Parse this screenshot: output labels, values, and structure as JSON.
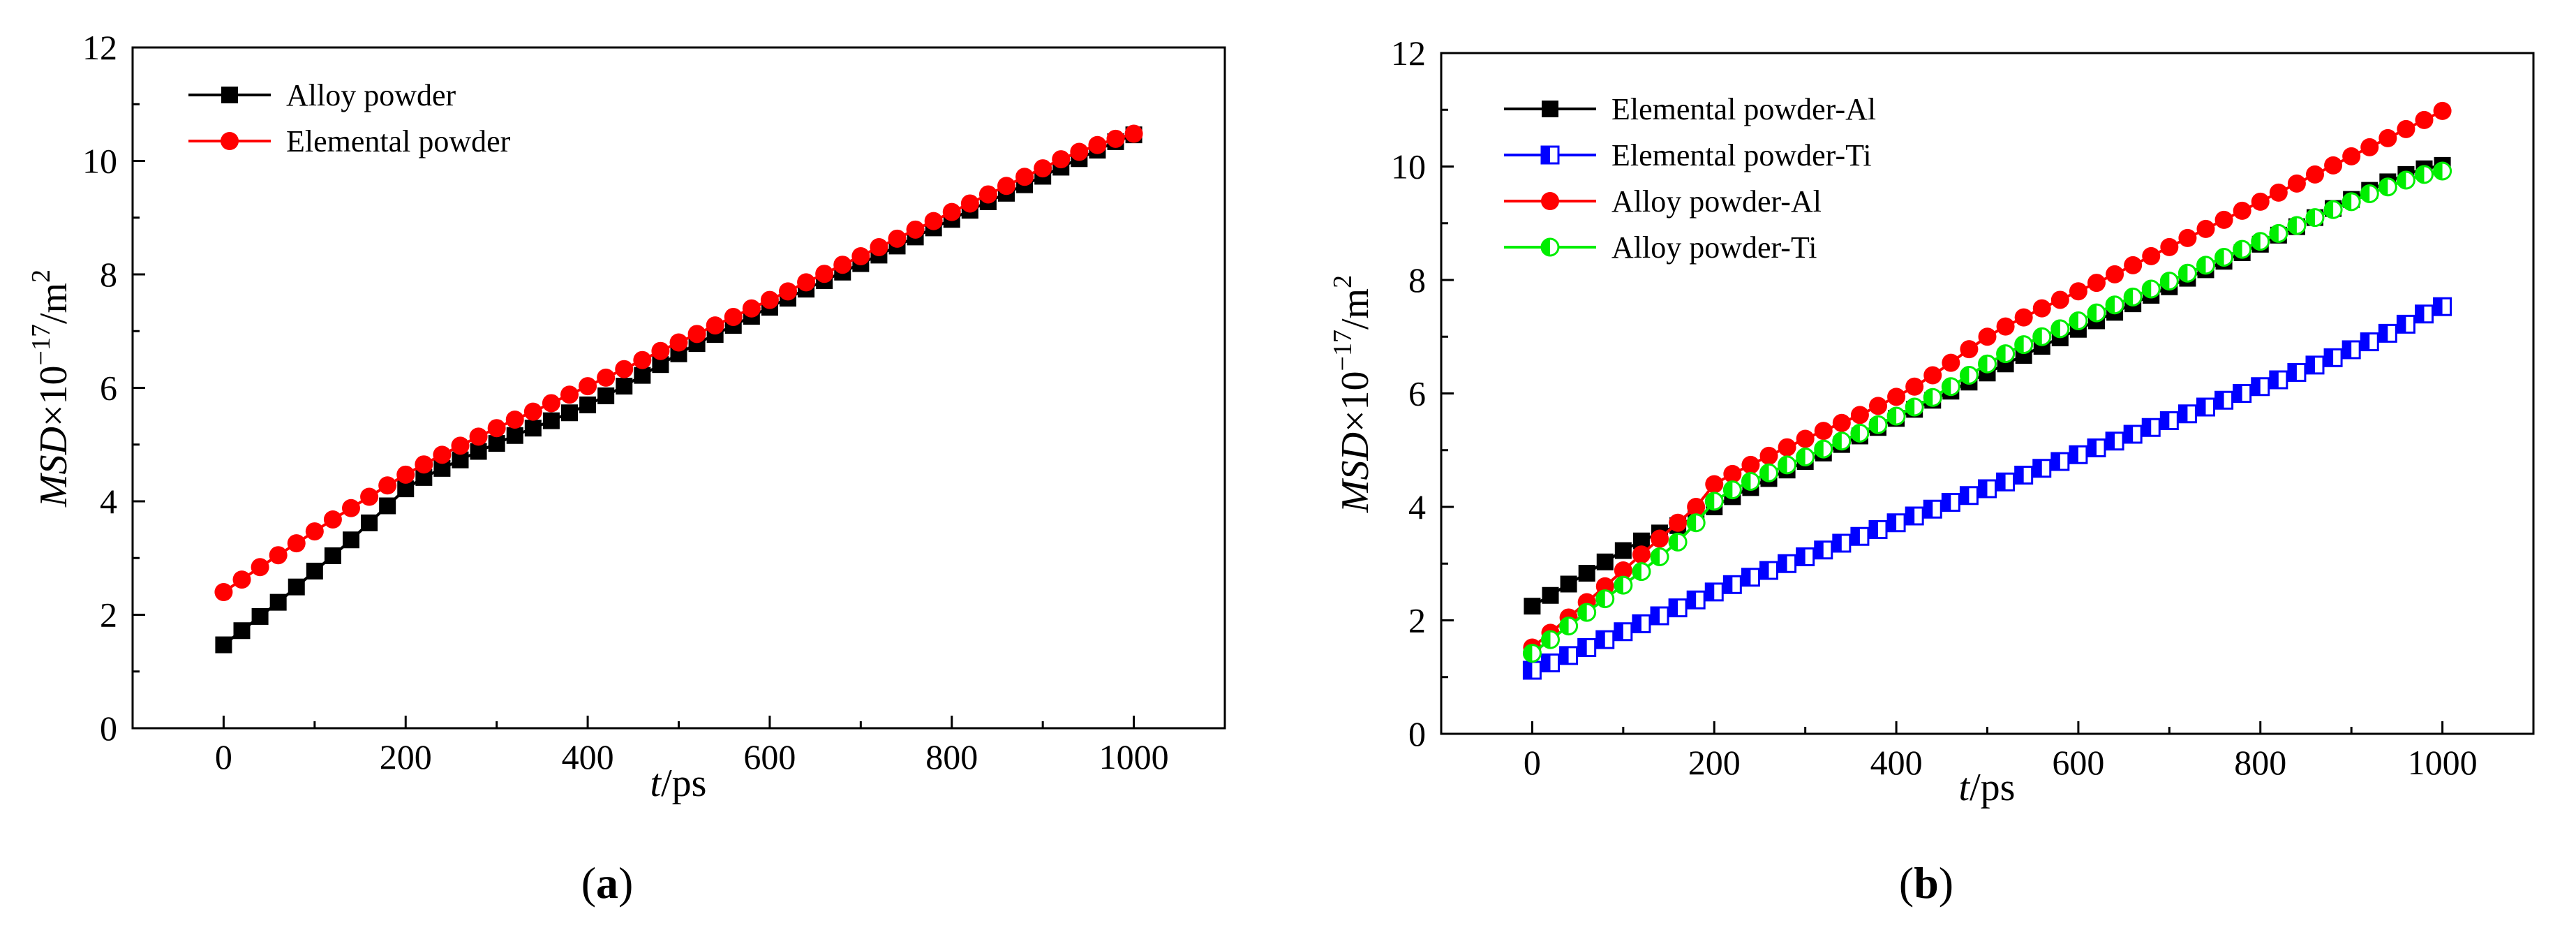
{
  "chart_data": [
    {
      "type": "line",
      "panel_label": "(a)",
      "panel_letter": "a",
      "xlabel_var": "t",
      "xlabel_unit": "/ps",
      "ylabel_var": "MSD",
      "ylabel_times": "×10",
      "ylabel_exp": "−17",
      "ylabel_unit": "/m",
      "ylabel_unit_exp": "2",
      "xlim": [
        -100,
        1100
      ],
      "ylim": [
        0,
        12
      ],
      "xticks": [
        0,
        200,
        400,
        600,
        800,
        1000
      ],
      "yticks": [
        0,
        2,
        4,
        6,
        8,
        10,
        12
      ],
      "legend_position": "top-left",
      "series": [
        {
          "name": "Alloy powder",
          "color": "#000000",
          "marker": "square-filled",
          "x": [
            0,
            20,
            40,
            60,
            80,
            100,
            120,
            140,
            160,
            180,
            200,
            220,
            240,
            260,
            280,
            300,
            320,
            340,
            360,
            380,
            400,
            420,
            440,
            460,
            480,
            500,
            520,
            540,
            560,
            580,
            600,
            620,
            640,
            660,
            680,
            700,
            720,
            740,
            760,
            780,
            800,
            820,
            840,
            860,
            880,
            900,
            920,
            940,
            960,
            980,
            1000
          ],
          "values": [
            1.47,
            1.72,
            1.97,
            2.22,
            2.49,
            2.77,
            3.04,
            3.32,
            3.62,
            3.92,
            4.22,
            4.42,
            4.58,
            4.73,
            4.88,
            5.02,
            5.16,
            5.29,
            5.42,
            5.56,
            5.7,
            5.86,
            6.03,
            6.22,
            6.41,
            6.6,
            6.78,
            6.94,
            7.1,
            7.26,
            7.42,
            7.58,
            7.74,
            7.89,
            8.04,
            8.19,
            8.34,
            8.5,
            8.66,
            8.82,
            8.97,
            9.13,
            9.28,
            9.43,
            9.58,
            9.73,
            9.89,
            10.04,
            10.19,
            10.34,
            10.46
          ]
        },
        {
          "name": "Elemental powder",
          "color": "#ff0000",
          "marker": "circle-filled",
          "x": [
            0,
            20,
            40,
            60,
            80,
            100,
            120,
            140,
            160,
            180,
            200,
            220,
            240,
            260,
            280,
            300,
            320,
            340,
            360,
            380,
            400,
            420,
            440,
            460,
            480,
            500,
            520,
            540,
            560,
            580,
            600,
            620,
            640,
            660,
            680,
            700,
            720,
            740,
            760,
            780,
            800,
            820,
            840,
            860,
            880,
            900,
            920,
            940,
            960,
            980,
            1000
          ],
          "values": [
            2.4,
            2.62,
            2.84,
            3.05,
            3.26,
            3.47,
            3.68,
            3.88,
            4.08,
            4.28,
            4.47,
            4.65,
            4.82,
            4.98,
            5.14,
            5.29,
            5.44,
            5.58,
            5.73,
            5.88,
            6.03,
            6.18,
            6.33,
            6.49,
            6.65,
            6.8,
            6.95,
            7.1,
            7.25,
            7.4,
            7.55,
            7.7,
            7.86,
            8.01,
            8.17,
            8.32,
            8.48,
            8.63,
            8.79,
            8.94,
            9.1,
            9.25,
            9.41,
            9.56,
            9.72,
            9.87,
            10.03,
            10.16,
            10.28,
            10.39,
            10.48
          ]
        }
      ]
    },
    {
      "type": "line",
      "panel_label": "(b)",
      "panel_letter": "b",
      "xlabel_var": "t",
      "xlabel_unit": "/ps",
      "ylabel_var": "MSD",
      "ylabel_times": "×10",
      "ylabel_exp": "−17",
      "ylabel_unit": "/m",
      "ylabel_unit_exp": "2",
      "xlim": [
        -100,
        1100
      ],
      "ylim": [
        0,
        12
      ],
      "xticks": [
        0,
        200,
        400,
        600,
        800,
        1000
      ],
      "yticks": [
        0,
        2,
        4,
        6,
        8,
        10,
        12
      ],
      "legend_position": "top-left",
      "series": [
        {
          "name": "Elemental powder-Al",
          "color": "#000000",
          "marker": "square-filled",
          "x": [
            0,
            20,
            40,
            60,
            80,
            100,
            120,
            140,
            160,
            180,
            200,
            220,
            240,
            260,
            280,
            300,
            320,
            340,
            360,
            380,
            400,
            420,
            440,
            460,
            480,
            500,
            520,
            540,
            560,
            580,
            600,
            620,
            640,
            660,
            680,
            700,
            720,
            740,
            760,
            780,
            800,
            820,
            840,
            860,
            880,
            900,
            920,
            940,
            960,
            980,
            1000
          ],
          "values": [
            2.25,
            2.44,
            2.64,
            2.83,
            3.03,
            3.23,
            3.4,
            3.54,
            3.67,
            3.82,
            4.0,
            4.18,
            4.34,
            4.5,
            4.65,
            4.8,
            4.95,
            5.1,
            5.25,
            5.4,
            5.56,
            5.72,
            5.88,
            6.04,
            6.2,
            6.36,
            6.52,
            6.67,
            6.83,
            6.98,
            7.13,
            7.28,
            7.43,
            7.58,
            7.73,
            7.88,
            8.03,
            8.18,
            8.33,
            8.48,
            8.63,
            8.79,
            8.94,
            9.1,
            9.26,
            9.42,
            9.58,
            9.73,
            9.86,
            9.96,
            10.02
          ]
        },
        {
          "name": "Elemental powder-Ti",
          "color": "#0000ff",
          "marker": "square-half",
          "x": [
            0,
            20,
            40,
            60,
            80,
            100,
            120,
            140,
            160,
            180,
            200,
            220,
            240,
            260,
            280,
            300,
            320,
            340,
            360,
            380,
            400,
            420,
            440,
            460,
            480,
            500,
            520,
            540,
            560,
            580,
            600,
            620,
            640,
            660,
            680,
            700,
            720,
            740,
            760,
            780,
            800,
            820,
            840,
            860,
            880,
            900,
            920,
            940,
            960,
            980,
            1000
          ],
          "values": [
            1.12,
            1.25,
            1.38,
            1.52,
            1.66,
            1.8,
            1.94,
            2.08,
            2.22,
            2.36,
            2.5,
            2.63,
            2.76,
            2.88,
            3.0,
            3.12,
            3.24,
            3.36,
            3.48,
            3.6,
            3.72,
            3.84,
            3.96,
            4.08,
            4.2,
            4.32,
            4.44,
            4.56,
            4.68,
            4.8,
            4.92,
            5.04,
            5.16,
            5.28,
            5.4,
            5.52,
            5.64,
            5.76,
            5.88,
            6.0,
            6.12,
            6.24,
            6.37,
            6.5,
            6.63,
            6.77,
            6.91,
            7.06,
            7.22,
            7.4,
            7.53
          ]
        },
        {
          "name": "Alloy powder-Al",
          "color": "#ff0000",
          "marker": "circle-filled",
          "x": [
            0,
            20,
            40,
            60,
            80,
            100,
            120,
            140,
            160,
            180,
            200,
            220,
            240,
            260,
            280,
            300,
            320,
            340,
            360,
            380,
            400,
            420,
            440,
            460,
            480,
            500,
            520,
            540,
            560,
            580,
            600,
            620,
            640,
            660,
            680,
            700,
            720,
            740,
            760,
            780,
            800,
            820,
            840,
            860,
            880,
            900,
            920,
            940,
            960,
            980,
            1000
          ],
          "values": [
            1.52,
            1.78,
            2.05,
            2.32,
            2.6,
            2.88,
            3.16,
            3.44,
            3.72,
            4.0,
            4.4,
            4.58,
            4.74,
            4.9,
            5.05,
            5.2,
            5.34,
            5.48,
            5.62,
            5.78,
            5.94,
            6.12,
            6.32,
            6.54,
            6.78,
            7.0,
            7.18,
            7.34,
            7.5,
            7.65,
            7.8,
            7.95,
            8.1,
            8.26,
            8.42,
            8.58,
            8.74,
            8.9,
            9.06,
            9.22,
            9.38,
            9.54,
            9.7,
            9.86,
            10.02,
            10.18,
            10.34,
            10.5,
            10.66,
            10.82,
            10.98
          ]
        },
        {
          "name": "Alloy powder-Ti",
          "color": "#00ee00",
          "marker": "circle-half",
          "x": [
            0,
            20,
            40,
            60,
            80,
            100,
            120,
            140,
            160,
            180,
            200,
            220,
            240,
            260,
            280,
            300,
            320,
            340,
            360,
            380,
            400,
            420,
            440,
            460,
            480,
            500,
            520,
            540,
            560,
            580,
            600,
            620,
            640,
            660,
            680,
            700,
            720,
            740,
            760,
            780,
            800,
            820,
            840,
            860,
            880,
            900,
            920,
            940,
            960,
            980,
            1000
          ],
          "values": [
            1.42,
            1.66,
            1.9,
            2.14,
            2.38,
            2.62,
            2.86,
            3.12,
            3.38,
            3.72,
            4.1,
            4.3,
            4.45,
            4.6,
            4.74,
            4.88,
            5.02,
            5.16,
            5.3,
            5.45,
            5.6,
            5.76,
            5.93,
            6.12,
            6.32,
            6.52,
            6.7,
            6.86,
            7.0,
            7.14,
            7.28,
            7.42,
            7.56,
            7.7,
            7.84,
            7.98,
            8.12,
            8.26,
            8.4,
            8.54,
            8.68,
            8.82,
            8.96,
            9.1,
            9.24,
            9.38,
            9.52,
            9.64,
            9.76,
            9.86,
            9.92
          ]
        }
      ]
    }
  ]
}
